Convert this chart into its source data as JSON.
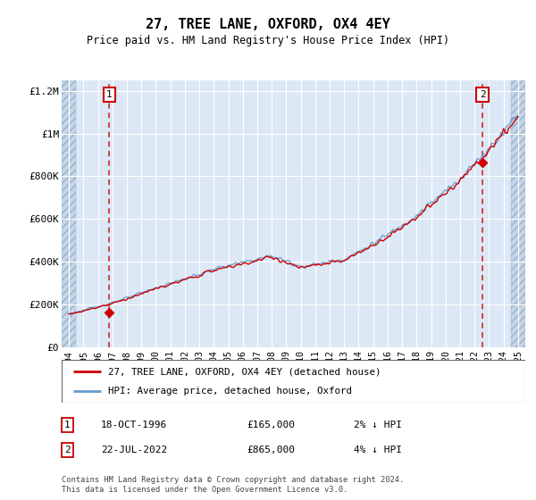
{
  "title": "27, TREE LANE, OXFORD, OX4 4EY",
  "subtitle": "Price paid vs. HM Land Registry's House Price Index (HPI)",
  "footer": "Contains HM Land Registry data © Crown copyright and database right 2024.\nThis data is licensed under the Open Government Licence v3.0.",
  "legend_line1": "27, TREE LANE, OXFORD, OX4 4EY (detached house)",
  "legend_line2": "HPI: Average price, detached house, Oxford",
  "annotation1_label": "1",
  "annotation1_date": "18-OCT-1996",
  "annotation1_price": "£165,000",
  "annotation1_hpi": "2% ↓ HPI",
  "annotation2_label": "2",
  "annotation2_date": "22-JUL-2022",
  "annotation2_price": "£865,000",
  "annotation2_hpi": "4% ↓ HPI",
  "sale1_year": 1996.79,
  "sale1_value": 165000,
  "sale2_year": 2022.55,
  "sale2_value": 865000,
  "hpi_color": "#6699cc",
  "price_color": "#cc0000",
  "background_plot": "#dce8f5",
  "background_hatch": "#c5d5e8",
  "grid_color": "#ffffff",
  "ylim": [
    0,
    1250000
  ],
  "xlim_start": 1993.5,
  "xlim_end": 2025.5,
  "yticks": [
    0,
    200000,
    400000,
    600000,
    800000,
    1000000,
    1200000
  ],
  "ytick_labels": [
    "£0",
    "£200K",
    "£400K",
    "£600K",
    "£800K",
    "£1M",
    "£1.2M"
  ],
  "xticks": [
    1994,
    1995,
    1996,
    1997,
    1998,
    1999,
    2000,
    2001,
    2002,
    2003,
    2004,
    2005,
    2006,
    2007,
    2008,
    2009,
    2010,
    2011,
    2012,
    2013,
    2014,
    2015,
    2016,
    2017,
    2018,
    2019,
    2020,
    2021,
    2022,
    2023,
    2024,
    2025
  ],
  "hatch_left_end": 1994.5,
  "hatch_right_start": 2024.5
}
